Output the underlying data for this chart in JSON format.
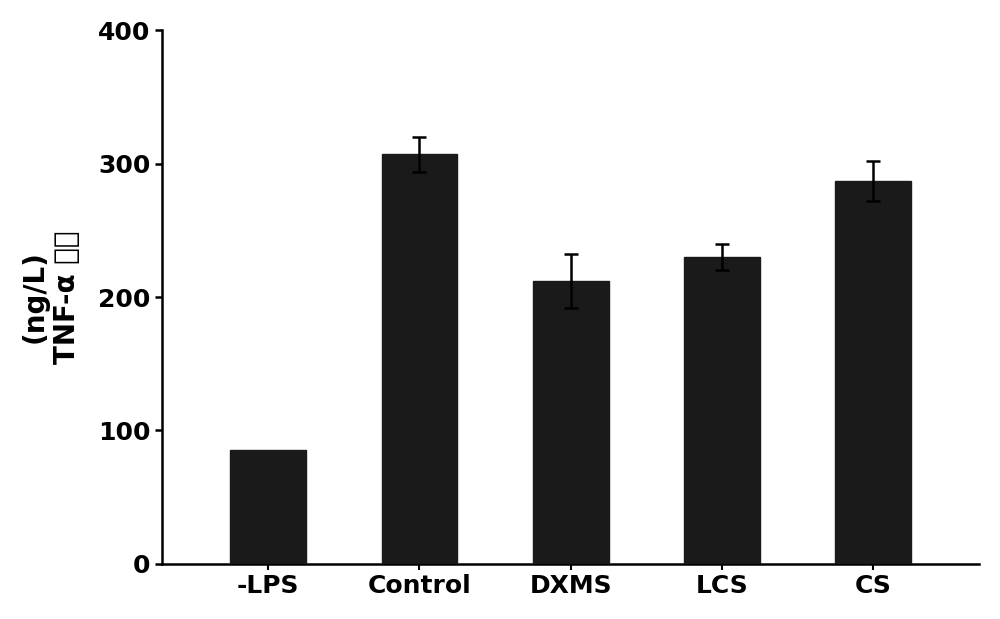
{
  "categories": [
    "-LPS",
    "Control",
    "DXMS",
    "LCS",
    "CS"
  ],
  "values": [
    85,
    307,
    212,
    230,
    287
  ],
  "errors": [
    0,
    13,
    20,
    10,
    15
  ],
  "bar_color": "#1a1a1a",
  "bar_width": 0.5,
  "ylim": [
    0,
    400
  ],
  "yticks": [
    0,
    100,
    200,
    300,
    400
  ],
  "ylabel_line1": "(ng/L)",
  "ylabel_line2": "TNF-α 水平",
  "ylabel_fontsize": 20,
  "tick_fontsize": 18,
  "xtick_fontsize": 18,
  "background_color": "#ffffff",
  "error_cap_size": 5,
  "error_linewidth": 1.8,
  "spine_linewidth": 1.8,
  "figsize": [
    10.0,
    6.19
  ],
  "dpi": 100
}
